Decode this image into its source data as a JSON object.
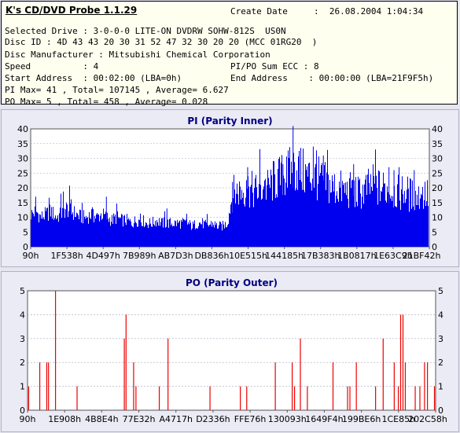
{
  "header": {
    "title": "K's CD/DVD Probe 1.1.29",
    "create_date_label": "Create Date",
    "create_date_value": ":  26.08.2004 1:04:34"
  },
  "info": {
    "selected_drive": "Selected Drive : 3-0-0-0 LITE-ON DVDRW SOHW-812S  US0N",
    "disc_id": "Disc ID : 4D 43 43 20 30 31 52 47 32 30 20 20 (MCC 01RG20  )",
    "disc_manufacturer": "Disc Manufacturer : Mitsubishi Chemical Corporation",
    "speed": "Speed          : 4",
    "pipo_sum": "PI/PO Sum ECC : 8",
    "start_address": "Start Address  : 00:02:00 (LBA=0h)",
    "end_address": "End Address    : 00:00:00 (LBA=21F9F5h)",
    "pi_summary": "PI Max= 41 , Total= 107145 , Average= 6.627",
    "po_summary": "PO Max= 5 , Total= 458 , Average= 0.028"
  },
  "colors": {
    "pi": "#0000ee",
    "po": "#ee0000",
    "grid": "#a8a8c0",
    "plot_bg": "#ffffff"
  },
  "chart_data": [
    {
      "type": "bar",
      "title": "PI (Parity Inner)",
      "ylim": [
        0,
        40
      ],
      "yticks": [
        0,
        5,
        10,
        15,
        20,
        25,
        30,
        35,
        40
      ],
      "x_tick_labels": [
        "90h",
        "1F538h",
        "4D497h",
        "7B989h",
        "AB7D3h",
        "DB836h",
        "10E515h",
        "144185h",
        "17B383h",
        "1B0817h",
        "1E63C9h",
        "21BF42h"
      ],
      "series": [
        {
          "values": [
            11,
            12,
            10,
            11,
            12,
            10,
            11,
            13,
            12,
            11,
            10,
            10,
            11,
            10,
            11,
            10,
            9,
            10,
            9,
            9,
            8,
            9,
            9,
            8,
            8,
            9,
            8,
            8,
            8,
            8,
            8,
            8,
            7,
            8,
            8,
            7,
            8,
            7,
            7,
            8,
            18,
            19,
            19,
            20,
            19,
            19,
            20,
            20,
            22,
            23,
            24,
            25,
            26,
            27,
            25,
            24,
            24,
            23,
            22,
            21,
            20,
            20,
            19,
            19,
            19,
            18,
            19,
            20,
            21,
            20,
            20,
            19,
            19,
            18,
            19,
            18,
            17,
            17,
            18,
            17
          ],
          "peaks": [
            [
              1,
              17
            ],
            [
              6,
              18
            ],
            [
              15,
              17
            ],
            [
              27,
              13
            ],
            [
              40,
              22
            ],
            [
              43,
              27
            ],
            [
              50,
              28
            ],
            [
              52,
              41
            ],
            [
              54,
              33
            ],
            [
              56,
              34
            ],
            [
              58,
              31
            ],
            [
              64,
              28
            ],
            [
              68,
              24
            ],
            [
              71,
              27
            ],
            [
              72,
              26
            ],
            [
              73,
              27
            ],
            [
              76,
              26
            ]
          ]
        }
      ]
    },
    {
      "type": "bar",
      "title": "PO (Parity Outer)",
      "ylim": [
        0,
        5
      ],
      "yticks": [
        0,
        1,
        2,
        3,
        4,
        5
      ],
      "x_tick_labels": [
        "90h",
        "1E908h",
        "4B8E4h",
        "77E32h",
        "A4717h",
        "D2336h",
        "FFE76h",
        "130093h",
        "1649F4h",
        "199BE6h",
        "1CE85h",
        "202C58h"
      ],
      "series": [
        {
          "values": [
            [
              0.2,
              1
            ],
            [
              2.1,
              2
            ],
            [
              3.3,
              2
            ],
            [
              3.6,
              2
            ],
            [
              4.8,
              5
            ],
            [
              8.5,
              1
            ],
            [
              16.6,
              3
            ],
            [
              16.9,
              4
            ],
            [
              18.2,
              2
            ],
            [
              18.6,
              1
            ],
            [
              22.6,
              1
            ],
            [
              24.1,
              3
            ],
            [
              31.3,
              1
            ],
            [
              36.5,
              1
            ],
            [
              37.6,
              1
            ],
            [
              42.5,
              2
            ],
            [
              45.4,
              2
            ],
            [
              45.8,
              1
            ],
            [
              46.8,
              3
            ],
            [
              48.0,
              1
            ],
            [
              52.4,
              2
            ],
            [
              54.9,
              1
            ],
            [
              55.3,
              1
            ],
            [
              56.4,
              2
            ],
            [
              59.7,
              1
            ],
            [
              61.0,
              3
            ],
            [
              62.9,
              2
            ],
            [
              63.6,
              1
            ],
            [
              64.0,
              4
            ],
            [
              64.4,
              4
            ],
            [
              64.8,
              2
            ],
            [
              66.5,
              1
            ],
            [
              67.3,
              1
            ],
            [
              68.1,
              2
            ],
            [
              68.6,
              2
            ],
            [
              69.8,
              1
            ]
          ]
        }
      ]
    }
  ]
}
